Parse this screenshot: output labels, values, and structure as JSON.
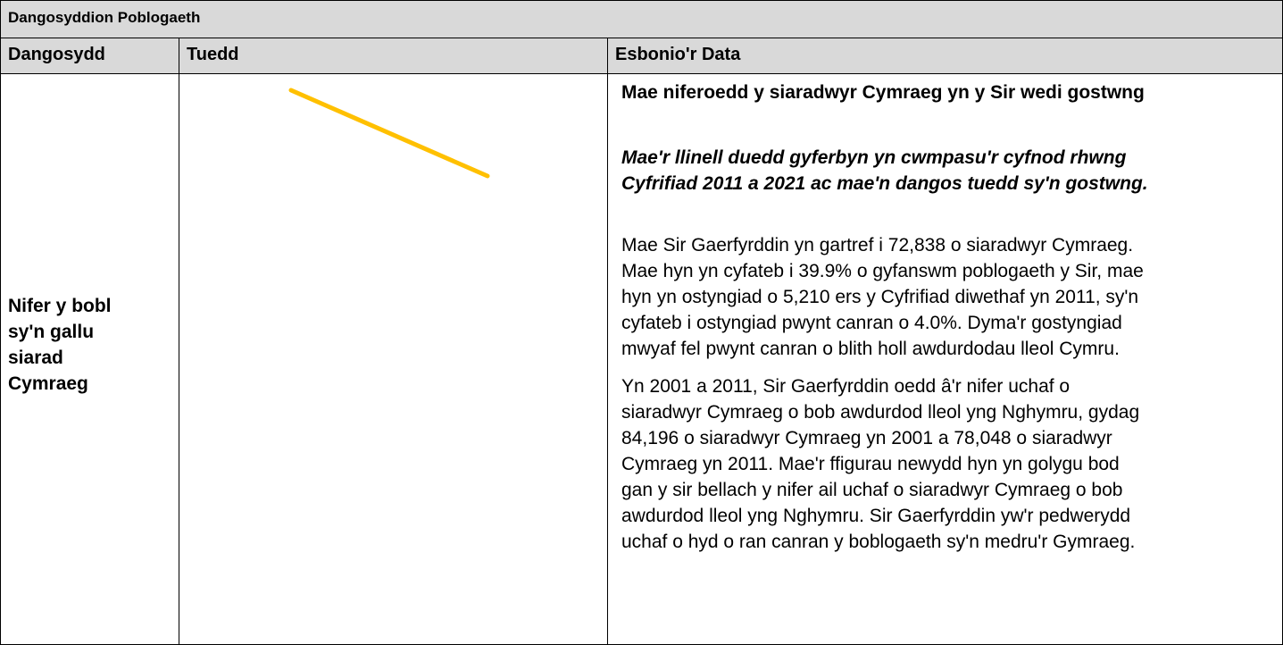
{
  "header": {
    "title": "Dangosyddion Poblogaeth"
  },
  "table": {
    "columns": [
      "Dangosydd",
      "Tuedd",
      "Esbonio'r Data"
    ],
    "rows": [
      {
        "indicator": [
          "Nifer y bobl",
          "sy'n gallu",
          "siarad",
          "Cymraeg"
        ],
        "explanation": {
          "heading": "Mae niferoedd y siaradwyr Cymraeg yn y Sir wedi gostwng",
          "note": [
            "Mae'r llinell duedd gyferbyn yn cwmpasu'r cyfnod rhwng",
            "Cyfrifiad 2011 a 2021 ac mae'n dangos tuedd sy'n gostwng."
          ],
          "paragraphs": [
            [
              "Mae Sir Gaerfyrddin yn gartref i 72,838 o siaradwyr Cymraeg.",
              "Mae hyn yn cyfateb i 39.9% o gyfanswm poblogaeth y Sir, mae",
              "hyn yn ostyngiad o 5,210 ers y Cyfrifiad diwethaf yn 2011, sy'n",
              "cyfateb i ostyngiad pwynt canran o 4.0%. Dyma'r gostyngiad",
              "mwyaf fel pwynt canran o blith holl awdurdodau lleol Cymru."
            ],
            [
              "Yn 2001 a 2011, Sir Gaerfyrddin oedd â'r nifer uchaf o",
              "siaradwyr Cymraeg o bob awdurdod lleol yng Nghymru, gydag",
              "84,196 o siaradwyr Cymraeg yn 2001 a 78,048 o siaradwyr",
              "Cymraeg yn 2011. Mae'r ffigurau newydd hyn yn golygu bod",
              "gan y sir bellach y nifer ail uchaf o siaradwyr Cymraeg o bob",
              "awdurdod lleol yng Nghymru. Sir Gaerfyrddin yw'r pedwerydd",
              "uchaf o hyd o ran canran y boblogaeth sy'n medru'r Gymraeg."
            ]
          ]
        }
      }
    ]
  }
}
